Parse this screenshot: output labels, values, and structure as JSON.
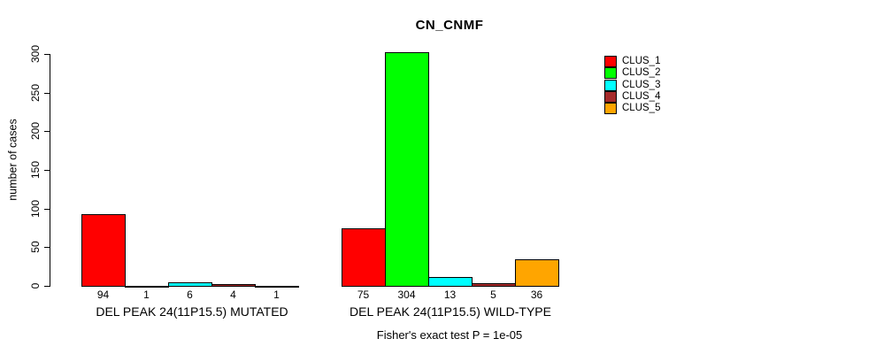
{
  "title": "CN_CNMF",
  "chart_data": {
    "type": "bar",
    "title": "CN_CNMF",
    "xlabel": "",
    "ylabel": "number of cases",
    "ylim": [
      0,
      300
    ],
    "yticks": [
      0,
      50,
      100,
      150,
      200,
      250,
      300
    ],
    "grid": false,
    "legend_position": "top-right",
    "series": [
      "CLUS_1",
      "CLUS_2",
      "CLUS_3",
      "CLUS_4",
      "CLUS_5"
    ],
    "colors": [
      "#ff0000",
      "#00ff00",
      "#00ffff",
      "#a52a2a",
      "#ffa500"
    ],
    "groups": [
      {
        "label": "DEL PEAK 24(11P15.5) MUTATED",
        "values": [
          94,
          1,
          6,
          4,
          1
        ]
      },
      {
        "label": "DEL PEAK 24(11P15.5) WILD-TYPE",
        "values": [
          75,
          304,
          13,
          5,
          36
        ]
      }
    ],
    "bar_value_labels": [
      [
        "94",
        "1",
        "6",
        "4",
        "1"
      ],
      [
        "75",
        "304",
        "13",
        "5",
        "36"
      ]
    ],
    "annotation": "Fisher's exact test P = 1e-05"
  }
}
